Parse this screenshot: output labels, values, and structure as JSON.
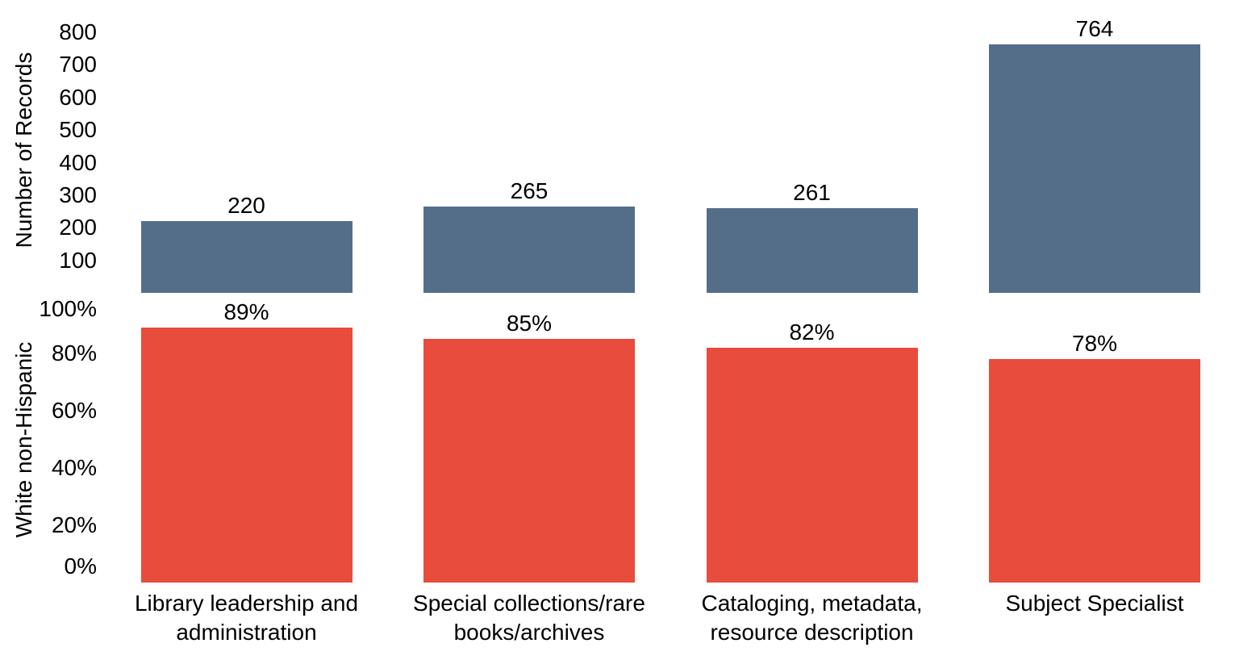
{
  "chart_data": {
    "type": "bar",
    "layout": "two-panel-vertical",
    "title": "",
    "grid": false,
    "legend": false,
    "background": "#FFFFFF",
    "text_color": "#000000",
    "categories": [
      "Library leadership and administration",
      "Special collections/rare books/archives",
      "Cataloging, metadata, resource description",
      "Subject Specialist"
    ],
    "category_lines": [
      [
        "Library leadership and",
        "administration"
      ],
      [
        "Special collections/rare",
        "books/archives"
      ],
      [
        "Cataloging, metadata,",
        "resource description"
      ],
      [
        "Subject Specialist"
      ]
    ],
    "panels": [
      {
        "name": "number-of-records",
        "ylabel": "Number of Records",
        "values": [
          220,
          265,
          261,
          764
        ],
        "value_labels": [
          "220",
          "265",
          "261",
          "764"
        ],
        "bar_color": "#546E8A",
        "ylim": [
          0,
          880
        ],
        "yticks": [
          100,
          200,
          300,
          400,
          500,
          600,
          700,
          800
        ],
        "ytick_labels": [
          "100",
          "200",
          "300",
          "400",
          "500",
          "600",
          "700",
          "800"
        ]
      },
      {
        "name": "white-non-hispanic",
        "ylabel": "White non-Hispanic",
        "values": [
          89,
          85,
          82,
          78
        ],
        "value_labels": [
          "89%",
          "85%",
          "82%",
          "78%"
        ],
        "bar_color": "#E84C3C",
        "ylim": [
          0,
          100
        ],
        "yticks": [
          0,
          20,
          40,
          60,
          80,
          100
        ],
        "ytick_labels": [
          "0%",
          "20%",
          "40%",
          "60%",
          "80%",
          "100%"
        ]
      }
    ]
  }
}
